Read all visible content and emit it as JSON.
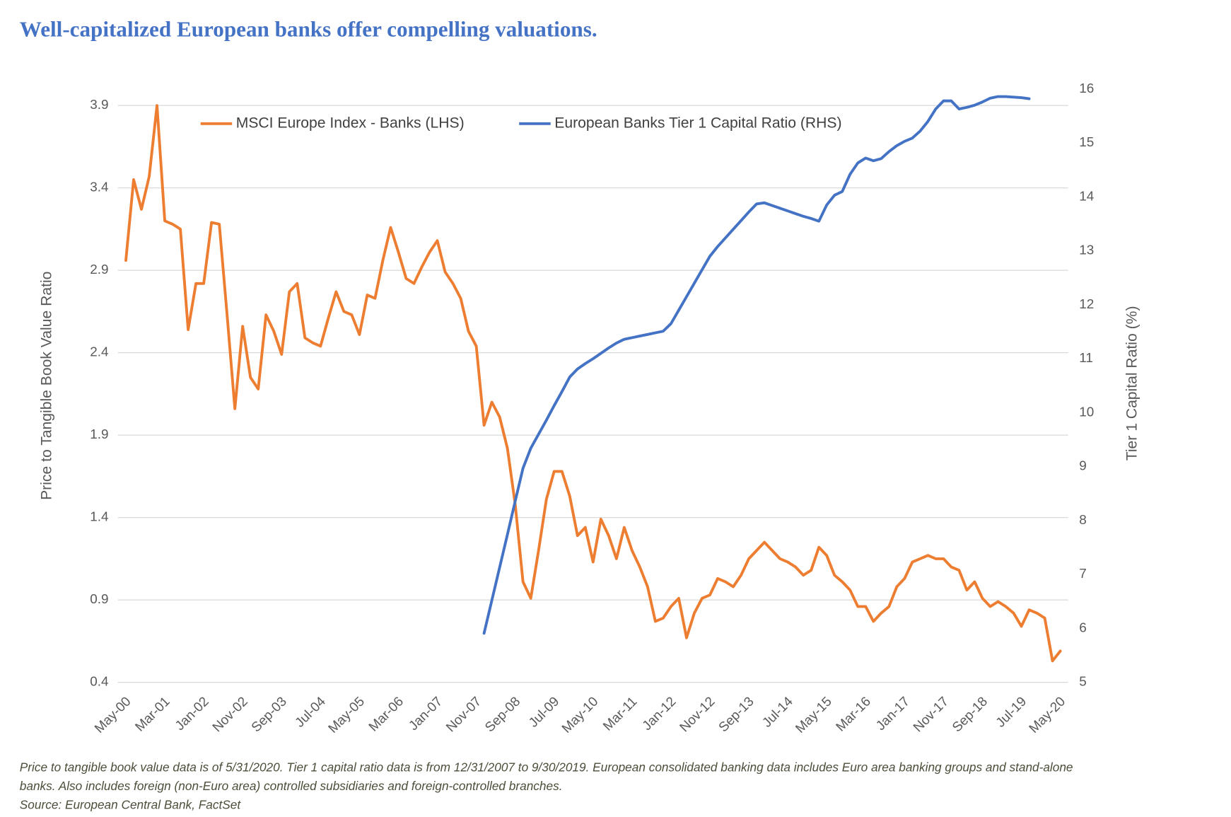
{
  "chart_data": {
    "type": "line",
    "title": "Well-capitalized European banks offer compelling valuations.",
    "y_label": "Price to Tangible Book Value Ratio",
    "y2_label": "Tier 1 Capital Ratio (%)",
    "notes": [
      "Price to tangible book value data is of 5/31/2020. Tier 1 capital ratio data is from 12/31/2007 to 9/30/2019. European consolidated banking data includes Euro area banking groups and stand-alone",
      "banks. Also includes foreign (non-Euro area) controlled subsidiaries and foreign-controlled branches.",
      "Source: European Central Bank, FactSet"
    ],
    "categories": [
      "May-00",
      null,
      null,
      null,
      null,
      "Mar-01",
      null,
      null,
      null,
      null,
      "Jan-02",
      null,
      null,
      null,
      null,
      "Nov-02",
      null,
      null,
      null,
      null,
      "Sep-03",
      null,
      null,
      null,
      null,
      "Jul-04",
      null,
      null,
      null,
      null,
      "May-05",
      null,
      null,
      null,
      null,
      "Mar-06",
      null,
      null,
      null,
      null,
      "Jan-07",
      null,
      null,
      null,
      null,
      "Nov-07",
      null,
      null,
      null,
      null,
      "Sep-08",
      null,
      null,
      null,
      null,
      "Jul-09",
      null,
      null,
      null,
      null,
      "May-10",
      null,
      null,
      null,
      null,
      "Mar-11",
      null,
      null,
      null,
      null,
      "Jan-12",
      null,
      null,
      null,
      null,
      "Nov-12",
      null,
      null,
      null,
      null,
      "Sep-13",
      null,
      null,
      null,
      null,
      "Jul-14",
      null,
      null,
      null,
      null,
      "May-15",
      null,
      null,
      null,
      null,
      "Mar-16",
      null,
      null,
      null,
      null,
      "Jan-17",
      null,
      null,
      null,
      null,
      "Nov-17",
      null,
      null,
      null,
      null,
      "Sep-18",
      null,
      null,
      null,
      null,
      "Jul-19",
      null,
      null,
      null,
      null,
      "May-20"
    ],
    "series": [
      {
        "name": "MSCI Europe Index - Banks (LHS)",
        "color": "#ed7d31",
        "axis": "y",
        "values": [
          2.96,
          3.45,
          3.27,
          3.47,
          3.9,
          3.2,
          3.18,
          3.15,
          2.54,
          2.82,
          2.82,
          3.19,
          3.18,
          2.63,
          2.06,
          2.56,
          2.25,
          2.18,
          2.63,
          2.53,
          2.39,
          2.77,
          2.82,
          2.49,
          2.46,
          2.44,
          2.61,
          2.77,
          2.65,
          2.63,
          2.51,
          2.75,
          2.73,
          2.96,
          3.16,
          3.01,
          2.85,
          2.82,
          2.92,
          3.01,
          3.08,
          2.89,
          2.82,
          2.73,
          2.53,
          2.44,
          1.96,
          2.1,
          2.01,
          1.82,
          1.48,
          1.01,
          0.91,
          1.2,
          1.51,
          1.68,
          1.68,
          1.53,
          1.29,
          1.34,
          1.13,
          1.39,
          1.29,
          1.15,
          1.34,
          1.2,
          1.1,
          0.98,
          0.77,
          0.79,
          0.86,
          0.91,
          0.67,
          0.82,
          0.91,
          0.93,
          1.03,
          1.01,
          0.98,
          1.05,
          1.15,
          1.2,
          1.25,
          1.2,
          1.15,
          1.13,
          1.1,
          1.05,
          1.08,
          1.22,
          1.17,
          1.05,
          1.01,
          0.96,
          0.86,
          0.86,
          0.77,
          0.82,
          0.86,
          0.98,
          1.03,
          1.13,
          1.15,
          1.17,
          1.15,
          1.15,
          1.1,
          1.08,
          0.96,
          1.01,
          0.91,
          0.86,
          0.89,
          0.86,
          0.82,
          0.74,
          0.84,
          0.82,
          0.79,
          0.53,
          0.59
        ]
      },
      {
        "name": "European Banks Tier 1 Capital Ratio (RHS)",
        "color": "#4472c4",
        "axis": "y2",
        "values": [
          null,
          null,
          null,
          null,
          null,
          null,
          null,
          null,
          null,
          null,
          null,
          null,
          null,
          null,
          null,
          null,
          null,
          null,
          null,
          null,
          null,
          null,
          null,
          null,
          null,
          null,
          null,
          null,
          null,
          null,
          null,
          null,
          null,
          null,
          null,
          null,
          null,
          null,
          null,
          null,
          null,
          null,
          null,
          null,
          null,
          null,
          5.91,
          6.52,
          7.13,
          7.74,
          8.36,
          8.97,
          9.34,
          9.6,
          9.86,
          10.13,
          10.39,
          10.66,
          10.81,
          10.91,
          11.0,
          11.1,
          11.2,
          11.29,
          11.36,
          11.39,
          11.42,
          11.45,
          11.48,
          11.51,
          11.65,
          11.9,
          12.15,
          12.4,
          12.65,
          12.9,
          13.08,
          13.24,
          13.4,
          13.56,
          13.72,
          13.87,
          13.89,
          13.84,
          13.79,
          13.74,
          13.69,
          13.64,
          13.6,
          13.55,
          13.85,
          14.03,
          14.1,
          14.42,
          14.63,
          14.72,
          14.67,
          14.71,
          14.84,
          14.95,
          15.03,
          15.09,
          15.22,
          15.4,
          15.63,
          15.78,
          15.78,
          15.63,
          15.66,
          15.7,
          15.76,
          15.83,
          15.86,
          15.86,
          15.85,
          15.84,
          15.82,
          null,
          null,
          null,
          null
        ]
      }
    ],
    "ylim": [
      0.4,
      4.0
    ],
    "yticks": [
      0.4,
      0.9,
      1.4,
      1.9,
      2.4,
      2.9,
      3.4,
      3.9
    ],
    "y2lim": [
      5,
      16
    ],
    "y2ticks": [
      5,
      6,
      7,
      8,
      9,
      10,
      11,
      12,
      13,
      14,
      15,
      16
    ],
    "grid": true,
    "legend": "top"
  }
}
